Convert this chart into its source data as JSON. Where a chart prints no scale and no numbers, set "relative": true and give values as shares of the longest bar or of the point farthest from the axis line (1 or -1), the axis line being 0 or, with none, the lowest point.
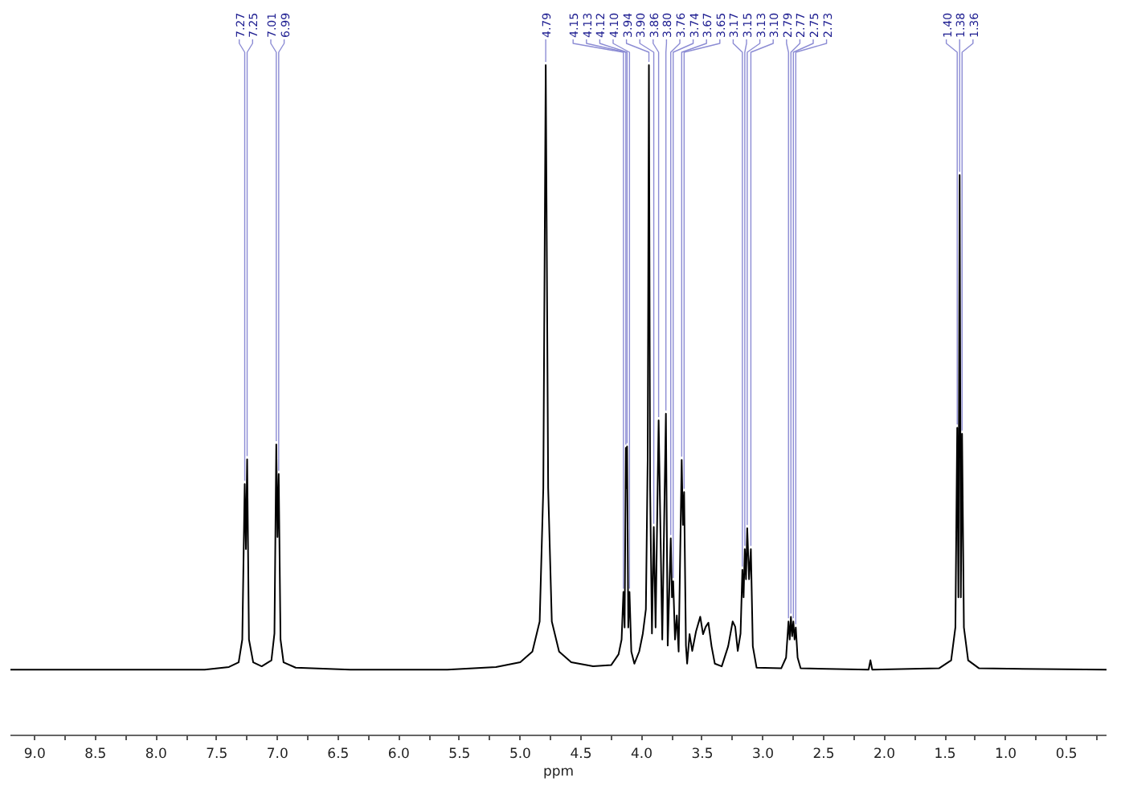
{
  "chart_data": {
    "type": "line",
    "relative": true,
    "xlabel": "ppm",
    "color": "#000000",
    "line_style": "solid",
    "xlim": [
      9.2,
      0.17
    ],
    "xticks": [
      {
        "value": 9,
        "label": "9.0"
      },
      {
        "value": 8.75,
        "label": null
      },
      {
        "value": 8.5,
        "label": "8.5"
      },
      {
        "value": 8.25,
        "label": null
      },
      {
        "value": 8,
        "label": "8.0"
      },
      {
        "value": 7.75,
        "label": null
      },
      {
        "value": 7.5,
        "label": "7.5"
      },
      {
        "value": 7.25,
        "label": null
      },
      {
        "value": 7,
        "label": "7.0"
      },
      {
        "value": 6.75,
        "label": null
      },
      {
        "value": 6.5,
        "label": "6.5"
      },
      {
        "value": 6.25,
        "label": null
      },
      {
        "value": 6,
        "label": "6.0"
      },
      {
        "value": 5.75,
        "label": null
      },
      {
        "value": 5.5,
        "label": "5.5"
      },
      {
        "value": 5.25,
        "label": null
      },
      {
        "value": 5,
        "label": "5.0"
      },
      {
        "value": 4.75,
        "label": null
      },
      {
        "value": 4.5,
        "label": "4.5"
      },
      {
        "value": 4.25,
        "label": null
      },
      {
        "value": 4,
        "label": "4.0"
      },
      {
        "value": 3.75,
        "label": null
      },
      {
        "value": 3.5,
        "label": "3.5"
      },
      {
        "value": 3.25,
        "label": null
      },
      {
        "value": 3,
        "label": "3.0"
      },
      {
        "value": 2.75,
        "label": null
      },
      {
        "value": 2.5,
        "label": "2.5"
      },
      {
        "value": 2.25,
        "label": null
      },
      {
        "value": 2,
        "label": "2.0"
      },
      {
        "value": 1.75,
        "label": null
      },
      {
        "value": 1.5,
        "label": "1.5"
      },
      {
        "value": 1.25,
        "label": null
      },
      {
        "value": 1,
        "label": "1.0"
      },
      {
        "value": 0.75,
        "label": null
      },
      {
        "value": 0.5,
        "label": "0.5"
      },
      {
        "value": 0.25,
        "label": null
      }
    ],
    "x": [
      9.2,
      7.6,
      7.4,
      7.32,
      7.29,
      7.27,
      7.26,
      7.25,
      7.235,
      7.2,
      7.13,
      7.05,
      7.025,
      7.01,
      7.0,
      6.99,
      6.975,
      6.95,
      6.85,
      6.4,
      5.6,
      5.2,
      5.0,
      4.9,
      4.84,
      4.81,
      4.79,
      4.77,
      4.74,
      4.68,
      4.58,
      4.4,
      4.25,
      4.19,
      4.165,
      4.15,
      4.14,
      4.13,
      4.125,
      4.12,
      4.11,
      4.1,
      4.085,
      4.06,
      4.02,
      3.99,
      3.965,
      3.95,
      3.94,
      3.93,
      3.915,
      3.9,
      3.885,
      3.86,
      3.83,
      3.8,
      3.785,
      3.76,
      3.75,
      3.74,
      3.725,
      3.71,
      3.695,
      3.67,
      3.66,
      3.65,
      3.635,
      3.625,
      3.605,
      3.583,
      3.552,
      3.517,
      3.494,
      3.472,
      3.45,
      3.424,
      3.397,
      3.34,
      3.287,
      3.25,
      3.229,
      3.208,
      3.185,
      3.17,
      3.16,
      3.15,
      3.14,
      3.13,
      3.115,
      3.1,
      3.084,
      3.053,
      2.85,
      2.81,
      2.79,
      2.78,
      2.77,
      2.76,
      2.75,
      2.74,
      2.73,
      2.715,
      2.69,
      2.13,
      2.115,
      2.1,
      1.55,
      1.45,
      1.415,
      1.4,
      1.39,
      1.38,
      1.37,
      1.36,
      1.345,
      1.31,
      1.22,
      0.17
    ],
    "values": [
      0.098,
      0.098,
      0.102,
      0.109,
      0.143,
      0.375,
      0.278,
      0.412,
      0.143,
      0.109,
      0.103,
      0.112,
      0.152,
      0.434,
      0.296,
      0.39,
      0.143,
      0.109,
      0.101,
      0.098,
      0.098,
      0.102,
      0.109,
      0.125,
      0.17,
      0.369,
      1.0,
      0.369,
      0.17,
      0.125,
      0.109,
      0.103,
      0.105,
      0.121,
      0.143,
      0.214,
      0.161,
      0.429,
      0.369,
      0.431,
      0.161,
      0.214,
      0.125,
      0.107,
      0.125,
      0.152,
      0.188,
      0.414,
      1.0,
      0.369,
      0.152,
      0.311,
      0.161,
      0.47,
      0.143,
      0.48,
      0.134,
      0.294,
      0.206,
      0.23,
      0.143,
      0.179,
      0.125,
      0.411,
      0.314,
      0.363,
      0.134,
      0.107,
      0.151,
      0.126,
      0.155,
      0.177,
      0.151,
      0.162,
      0.168,
      0.133,
      0.107,
      0.103,
      0.133,
      0.17,
      0.162,
      0.126,
      0.152,
      0.247,
      0.206,
      0.278,
      0.233,
      0.309,
      0.233,
      0.278,
      0.133,
      0.101,
      0.1,
      0.116,
      0.17,
      0.143,
      0.177,
      0.148,
      0.17,
      0.143,
      0.161,
      0.116,
      0.1,
      0.098,
      0.112,
      0.098,
      0.1,
      0.112,
      0.161,
      0.459,
      0.206,
      0.836,
      0.206,
      0.45,
      0.161,
      0.112,
      0.1,
      0.098
    ],
    "annotations": [
      {
        "text": "7.27",
        "x": 7.27,
        "y": 0.375
      },
      {
        "text": "7.25",
        "x": 7.25,
        "y": 0.412
      },
      {
        "text": "7.01",
        "x": 7.01,
        "y": 0.434
      },
      {
        "text": "6.99",
        "x": 6.99,
        "y": 0.39
      },
      {
        "text": "4.79",
        "x": 4.79,
        "y": 1.0
      },
      {
        "text": "4.15",
        "x": 4.15,
        "y": 0.214
      },
      {
        "text": "4.13",
        "x": 4.13,
        "y": 0.429
      },
      {
        "text": "4.12",
        "x": 4.12,
        "y": 0.431
      },
      {
        "text": "4.10",
        "x": 4.1,
        "y": 0.214
      },
      {
        "text": "3.94",
        "x": 3.94,
        "y": 1.0
      },
      {
        "text": "3.90",
        "x": 3.9,
        "y": 0.311
      },
      {
        "text": "3.86",
        "x": 3.86,
        "y": 0.47
      },
      {
        "text": "3.80",
        "x": 3.8,
        "y": 0.48
      },
      {
        "text": "3.76",
        "x": 3.76,
        "y": 0.294
      },
      {
        "text": "3.74",
        "x": 3.74,
        "y": 0.23
      },
      {
        "text": "3.67",
        "x": 3.67,
        "y": 0.411
      },
      {
        "text": "3.65",
        "x": 3.65,
        "y": 0.363
      },
      {
        "text": "3.17",
        "x": 3.17,
        "y": 0.247
      },
      {
        "text": "3.15",
        "x": 3.15,
        "y": 0.278
      },
      {
        "text": "3.13",
        "x": 3.13,
        "y": 0.309
      },
      {
        "text": "3.10",
        "x": 3.1,
        "y": 0.278
      },
      {
        "text": "2.79",
        "x": 2.79,
        "y": 0.17
      },
      {
        "text": "2.77",
        "x": 2.77,
        "y": 0.177
      },
      {
        "text": "2.75",
        "x": 2.75,
        "y": 0.17
      },
      {
        "text": "2.73",
        "x": 2.73,
        "y": 0.161
      },
      {
        "text": "1.40",
        "x": 1.4,
        "y": 0.459
      },
      {
        "text": "1.38",
        "x": 1.38,
        "y": 0.836
      },
      {
        "text": "1.36",
        "x": 1.36,
        "y": 0.45
      }
    ]
  }
}
